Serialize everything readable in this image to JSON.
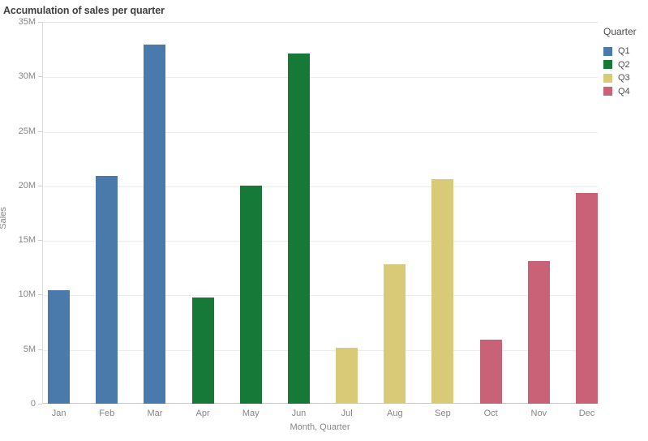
{
  "title": "Accumulation of sales per quarter",
  "legend": {
    "title": "Quarter",
    "items": [
      {
        "label": "Q1",
        "color": "#4a7aab"
      },
      {
        "label": "Q2",
        "color": "#177938"
      },
      {
        "label": "Q3",
        "color": "#d9ca77"
      },
      {
        "label": "Q4",
        "color": "#c96277"
      }
    ]
  },
  "chart_data": {
    "type": "bar",
    "title": "Accumulation of sales per quarter",
    "xlabel": "Month, Quarter",
    "ylabel": "Sales",
    "categories": [
      "Jan",
      "Feb",
      "Mar",
      "Apr",
      "May",
      "Jun",
      "Jul",
      "Aug",
      "Sep",
      "Oct",
      "Nov",
      "Dec"
    ],
    "groups": [
      "Q1",
      "Q1",
      "Q1",
      "Q2",
      "Q2",
      "Q2",
      "Q3",
      "Q3",
      "Q3",
      "Q4",
      "Q4",
      "Q4"
    ],
    "values_millions": [
      10.4,
      20.9,
      32.9,
      9.7,
      20.0,
      32.1,
      5.1,
      12.8,
      20.6,
      5.9,
      13.1,
      19.3
    ],
    "unit": "M",
    "ylim_millions": [
      0,
      35
    ],
    "ytick_step_millions": 5,
    "yticks": [
      "0",
      "5M",
      "10M",
      "15M",
      "20M",
      "25M",
      "30M",
      "35M"
    ],
    "grid": true,
    "legend_position": "top-right",
    "colors": {
      "Q1": "#4a7aab",
      "Q2": "#177938",
      "Q3": "#d9ca77",
      "Q4": "#c96277"
    }
  }
}
